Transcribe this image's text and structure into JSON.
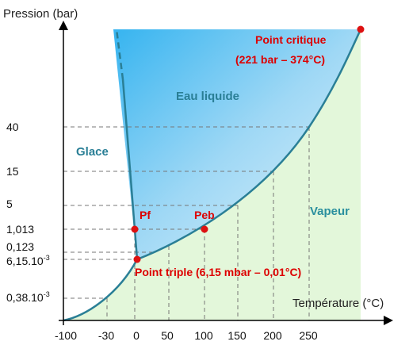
{
  "axes": {
    "y_label": "Pression (bar)",
    "x_label": "Température (°C)",
    "x_ticks": [
      "-100",
      "-30",
      "0",
      "50",
      "100",
      "150",
      "200",
      "250"
    ],
    "y_ticks": [
      {
        "base": "40",
        "sup": ""
      },
      {
        "base": "15",
        "sup": ""
      },
      {
        "base": "5",
        "sup": ""
      },
      {
        "base": "1,013",
        "sup": ""
      },
      {
        "base": "0,123",
        "sup": ""
      },
      {
        "base": "6,15.10",
        "sup": "-3"
      },
      {
        "base": "0,38.10",
        "sup": "-3"
      }
    ]
  },
  "regions": {
    "liquid": "Eau liquide",
    "ice": "Glace",
    "vapor": "Vapeur"
  },
  "points": {
    "critical_title": "Point critique",
    "critical_values": "(221 bar – 374°C)",
    "fusion": "Pf",
    "boiling": "Peb",
    "triple": "Point triple (6,15 mbar – 0,01°C)"
  },
  "colors": {
    "liquid_light": "#dff1fb",
    "liquid_dark": "#38b8f2",
    "vapor": "#e3f7da",
    "curve": "#2a7f96",
    "region_text": "#2a7f96",
    "vapor_text": "#2a8f9e",
    "point": "#dd1111"
  }
}
